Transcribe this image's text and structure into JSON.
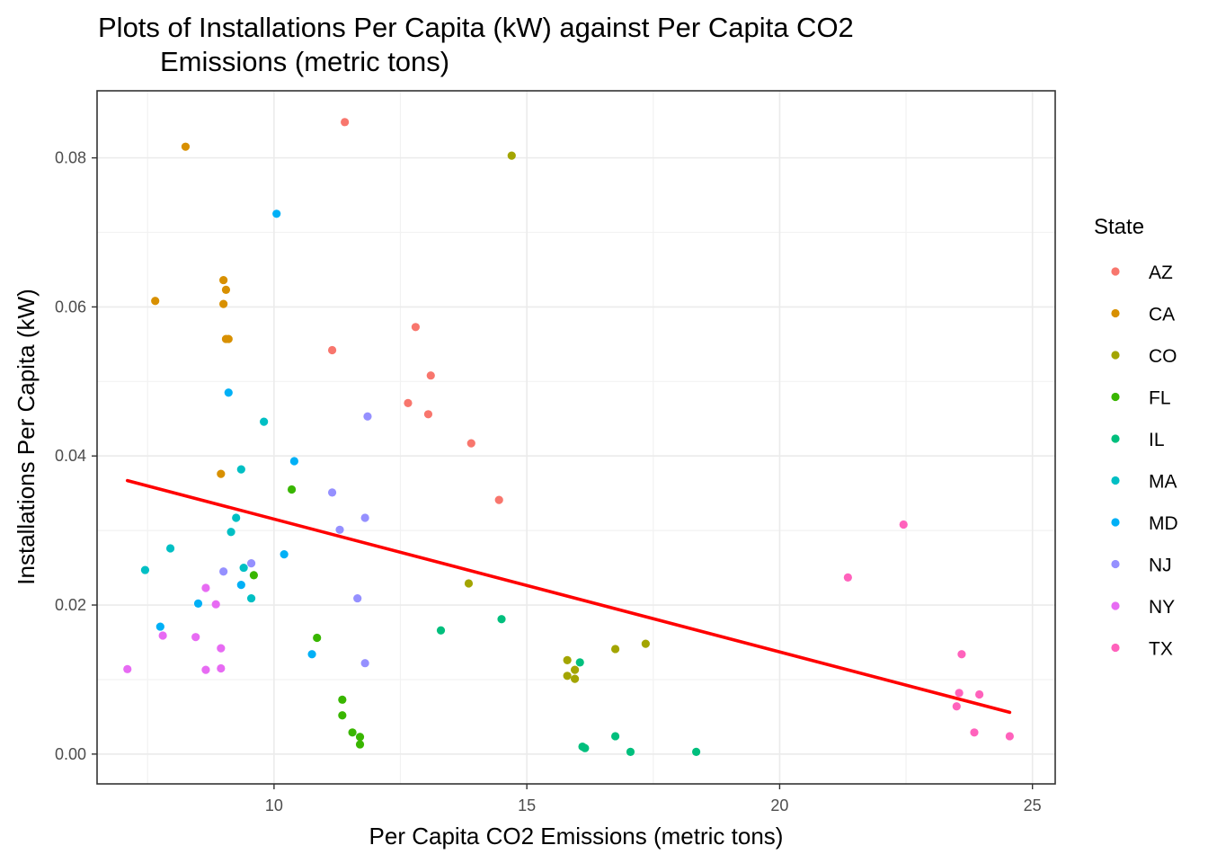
{
  "chart_data": {
    "type": "scatter",
    "title_lines": [
      "Plots of Installations Per Capita (kW) against Per Capita CO2",
      "Emissions (metric tons)"
    ],
    "xlabel": "Per Capita CO2 Emissions (metric tons)",
    "ylabel": "Installations Per Capita (kW)",
    "xlim": [
      6.5,
      25.45
    ],
    "ylim": [
      -0.004,
      0.089
    ],
    "x_ticks": [
      10,
      15,
      20,
      25
    ],
    "x_tick_labels": [
      "10",
      "15",
      "20",
      "25"
    ],
    "y_ticks": [
      0.0,
      0.02,
      0.04,
      0.06,
      0.08
    ],
    "y_tick_labels": [
      "0.00",
      "0.02",
      "0.04",
      "0.06",
      "0.08"
    ],
    "grid": true,
    "legend": {
      "title": "State",
      "position": "right"
    },
    "series": [
      {
        "name": "AZ",
        "color": "#F8766D",
        "points": [
          [
            11.4,
            0.0848
          ],
          [
            11.15,
            0.0542
          ],
          [
            12.8,
            0.0573
          ],
          [
            13.1,
            0.0508
          ],
          [
            12.65,
            0.0471
          ],
          [
            13.05,
            0.0456
          ],
          [
            13.9,
            0.0417
          ],
          [
            14.45,
            0.0341
          ]
        ]
      },
      {
        "name": "CA",
        "color": "#D89000",
        "points": [
          [
            8.25,
            0.0815
          ],
          [
            7.65,
            0.0608
          ],
          [
            9.0,
            0.0636
          ],
          [
            9.05,
            0.0623
          ],
          [
            9.0,
            0.0604
          ],
          [
            9.05,
            0.0557
          ],
          [
            9.1,
            0.0557
          ],
          [
            8.95,
            0.0376
          ]
        ]
      },
      {
        "name": "CO",
        "color": "#A3A500",
        "points": [
          [
            14.7,
            0.0803
          ],
          [
            13.85,
            0.0229
          ],
          [
            15.8,
            0.0126
          ],
          [
            15.95,
            0.0113
          ],
          [
            15.8,
            0.0105
          ],
          [
            15.95,
            0.0101
          ],
          [
            16.75,
            0.0141
          ],
          [
            17.35,
            0.0148
          ]
        ]
      },
      {
        "name": "FL",
        "color": "#39B600",
        "points": [
          [
            10.35,
            0.0355
          ],
          [
            9.6,
            0.024
          ],
          [
            10.85,
            0.0156
          ],
          [
            11.35,
            0.0073
          ],
          [
            11.35,
            0.0052
          ],
          [
            11.55,
            0.0029
          ],
          [
            11.7,
            0.0023
          ],
          [
            11.7,
            0.0013
          ]
        ]
      },
      {
        "name": "IL",
        "color": "#00BF7D",
        "points": [
          [
            13.3,
            0.0166
          ],
          [
            14.5,
            0.0181
          ],
          [
            16.05,
            0.0123
          ],
          [
            16.1,
            0.001
          ],
          [
            16.15,
            0.0008
          ],
          [
            16.75,
            0.0024
          ],
          [
            17.05,
            0.0003
          ],
          [
            18.35,
            0.0003
          ]
        ]
      },
      {
        "name": "MA",
        "color": "#00BFC4",
        "points": [
          [
            9.8,
            0.0446
          ],
          [
            9.35,
            0.0382
          ],
          [
            9.25,
            0.0317
          ],
          [
            9.15,
            0.0298
          ],
          [
            7.95,
            0.0276
          ],
          [
            7.45,
            0.0247
          ],
          [
            9.4,
            0.025
          ],
          [
            9.55,
            0.0209
          ]
        ]
      },
      {
        "name": "MD",
        "color": "#00B0F6",
        "points": [
          [
            10.05,
            0.0725
          ],
          [
            9.1,
            0.0485
          ],
          [
            10.4,
            0.0393
          ],
          [
            10.2,
            0.0268
          ],
          [
            8.5,
            0.0202
          ],
          [
            7.75,
            0.0171
          ],
          [
            9.35,
            0.0227
          ],
          [
            10.75,
            0.0134
          ]
        ]
      },
      {
        "name": "NJ",
        "color": "#9590FF",
        "points": [
          [
            11.85,
            0.0453
          ],
          [
            11.15,
            0.0351
          ],
          [
            11.8,
            0.0317
          ],
          [
            11.3,
            0.0301
          ],
          [
            9.55,
            0.0256
          ],
          [
            9.0,
            0.0245
          ],
          [
            11.65,
            0.0209
          ],
          [
            11.8,
            0.0122
          ]
        ]
      },
      {
        "name": "NY",
        "color": "#E76BF3",
        "points": [
          [
            8.65,
            0.0223
          ],
          [
            8.85,
            0.0201
          ],
          [
            7.8,
            0.0159
          ],
          [
            8.45,
            0.0157
          ],
          [
            8.95,
            0.0142
          ],
          [
            7.1,
            0.0114
          ],
          [
            8.65,
            0.0113
          ],
          [
            8.95,
            0.0115
          ]
        ]
      },
      {
        "name": "TX",
        "color": "#FF62BC",
        "points": [
          [
            22.45,
            0.0308
          ],
          [
            21.35,
            0.0237
          ],
          [
            23.6,
            0.0134
          ],
          [
            23.55,
            0.0082
          ],
          [
            23.95,
            0.008
          ],
          [
            23.5,
            0.0064
          ],
          [
            23.85,
            0.0029
          ],
          [
            24.55,
            0.0024
          ]
        ]
      }
    ],
    "trend_line": {
      "color": "#FF0000",
      "x": [
        7.1,
        24.55
      ],
      "y": [
        0.0367,
        0.0056
      ]
    }
  }
}
